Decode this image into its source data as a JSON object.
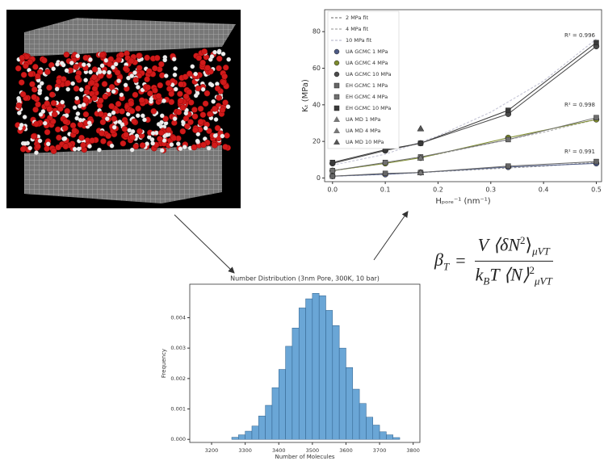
{
  "chart_data": [
    {
      "type": "line",
      "x_label": "Hₚₒᵣₑ⁻¹ (nm⁻¹)",
      "y_label": "Kₜ (MPa)",
      "xlim": [
        -0.015,
        0.51
      ],
      "ylim": [
        -2,
        92
      ],
      "xticks": [
        {
          "value": 0,
          "label": "0.0"
        },
        0.1,
        0.2,
        0.3,
        0.4,
        0.5
      ],
      "yticks": [
        0,
        20,
        40,
        60,
        80
      ],
      "legend": "upper left",
      "annotations": [
        "R² = 0.996",
        "R² = 0.998",
        "R² = 0.991"
      ],
      "series": [
        {
          "name": "2 MPa fit",
          "color": "#9a9a9a",
          "marker": "none",
          "x": [
            0,
            0.1,
            0.2,
            0.3,
            0.4,
            0.5
          ],
          "values": [
            1,
            2,
            3.5,
            5,
            6.5,
            8.5
          ]
        },
        {
          "name": "4 MPa fit",
          "color": "#b5b5b5",
          "marker": "none",
          "x": [
            0,
            0.1,
            0.2,
            0.3,
            0.4,
            0.5
          ],
          "values": [
            4,
            8,
            13,
            19,
            25,
            32
          ]
        },
        {
          "name": "10 MPa fit",
          "color": "#c8c8d8",
          "marker": "none",
          "x": [
            0,
            0.1,
            0.2,
            0.3,
            0.4,
            0.5
          ],
          "values": [
            7,
            13,
            23,
            36,
            53,
            76
          ]
        },
        {
          "name": "UA GCMC 1 MPa",
          "color": "#4d5a85",
          "marker": "circle",
          "x": [
            0,
            0.1,
            0.167,
            0.333,
            0.5
          ],
          "values": [
            1,
            2,
            3,
            6,
            8
          ]
        },
        {
          "name": "UA GCMC 4 MPa",
          "color": "#7d8b2d",
          "marker": "circle",
          "x": [
            0,
            0.1,
            0.167,
            0.333,
            0.5
          ],
          "values": [
            4,
            8,
            11,
            22,
            32
          ]
        },
        {
          "name": "UA GCMC 10 MPa",
          "color": "#4a4a4a",
          "marker": "circle",
          "x": [
            0,
            0.1,
            0.167,
            0.333,
            0.5
          ],
          "values": [
            8,
            15,
            19,
            35,
            72
          ]
        },
        {
          "name": "EH GCMC 1 MPa",
          "color": "#666666",
          "marker": "square",
          "x": [
            0,
            0.1,
            0.167,
            0.333,
            0.5
          ],
          "values": [
            1,
            2.5,
            3,
            6.5,
            9
          ]
        },
        {
          "name": "EH GCMC 4 MPa",
          "color": "#6f6f6f",
          "marker": "square",
          "x": [
            0,
            0.1,
            0.167,
            0.333,
            0.5
          ],
          "values": [
            4,
            8.5,
            11.5,
            21,
            33
          ]
        },
        {
          "name": "EH GCMC 10 MPa",
          "color": "#3a3a3a",
          "marker": "square",
          "x": [
            0,
            0.1,
            0.167,
            0.333,
            0.5
          ],
          "values": [
            8.5,
            15.5,
            19,
            37,
            74
          ]
        },
        {
          "name": "UA MD 1 MPa",
          "color": "#777777",
          "marker": "triangle",
          "x": [
            0.167
          ],
          "values": [
            3
          ]
        },
        {
          "name": "UA MD 4 MPa",
          "color": "#777777",
          "marker": "triangle",
          "x": [
            0.167
          ],
          "values": [
            11
          ]
        },
        {
          "name": "UA MD 10 MPa",
          "color": "#555555",
          "marker": "triangle",
          "x": [
            0.167
          ],
          "values": [
            27
          ]
        }
      ]
    },
    {
      "type": "histogram",
      "title": "Number Distribution (3nm Pore, 300K, 10 bar)",
      "x_label": "Number of Molecules",
      "y_label": "Frequency",
      "color": "#6aa6d6",
      "xlim": [
        3135,
        3820
      ],
      "ylim": [
        -0.0001,
        0.0051
      ],
      "xticks": [
        3200,
        3300,
        3400,
        3500,
        3600,
        3700,
        3800
      ],
      "yticks": [
        {
          "value": 0,
          "label": "0.000"
        },
        0.001,
        0.002,
        0.003,
        0.004
      ],
      "bins": [
        3260,
        3280,
        3300,
        3320,
        3340,
        3360,
        3380,
        3400,
        3420,
        3440,
        3460,
        3480,
        3500,
        3520,
        3540,
        3560,
        3580,
        3600,
        3620,
        3640,
        3660,
        3680,
        3700,
        3720,
        3740,
        3760
      ],
      "values": [
        7e-05,
        0.00015,
        0.00027,
        0.00044,
        0.00077,
        0.00112,
        0.0017,
        0.0023,
        0.00306,
        0.00366,
        0.00432,
        0.00462,
        0.0048,
        0.00472,
        0.00424,
        0.00374,
        0.003,
        0.00236,
        0.00165,
        0.00118,
        0.00073,
        0.00047,
        0.00025,
        0.00015,
        6e-05
      ]
    }
  ],
  "equation": {
    "lhs": "β",
    "lhs_sub": "T",
    "equals": "=",
    "num_v": "V",
    "num_body": "⟨δN",
    "num_sup": "2",
    "num_close": "⟩",
    "num_sub": "μVT",
    "den_k": "k",
    "den_k_sub": "B",
    "den_body": "T ⟨N⟩",
    "den_sup": "2",
    "den_sub": "μVT"
  }
}
